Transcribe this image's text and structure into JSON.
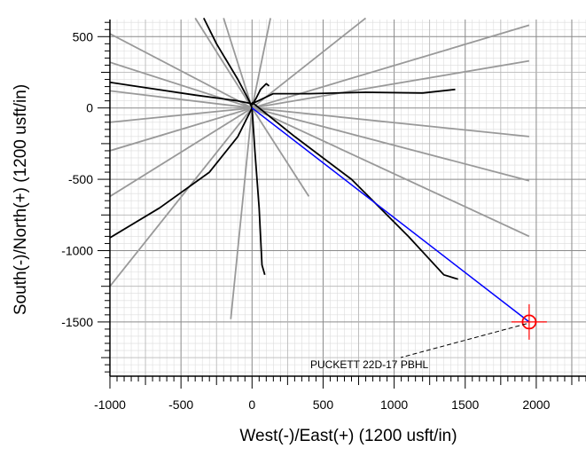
{
  "chart_data": {
    "type": "line",
    "xlabel": "West(-)/East(+) (1200 usft/in)",
    "ylabel": "South(-)/North(+) (1200 usft/in)",
    "xlim": [
      -1000,
      2350
    ],
    "ylim": [
      -1880,
      620
    ],
    "x_ticks": [
      -1000,
      -500,
      0,
      500,
      1000,
      1500,
      2000
    ],
    "y_ticks": [
      -1500,
      -1000,
      -500,
      0,
      500
    ],
    "x_tick_labels": [
      "-1000",
      "-500",
      "0",
      "500",
      "1000",
      "1500",
      "2000"
    ],
    "y_tick_labels": [
      "-1500",
      "-1000",
      "-500",
      "0",
      "500"
    ],
    "grid": true,
    "annotation": "PUCKETT 22D-17 PBHL",
    "target": {
      "x": 1950,
      "y": -1500
    },
    "series": [
      {
        "role": "planned-wellpath",
        "color": "#0000ff",
        "points": [
          [
            0,
            0
          ],
          [
            1950,
            -1500
          ]
        ]
      },
      {
        "role": "offset-wells",
        "color": "#000000",
        "lines": [
          [
            [
              0,
              0
            ],
            [
              -20,
              50
            ],
            [
              -100,
              200
            ],
            [
              -250,
              450
            ],
            [
              -340,
              630
            ]
          ],
          [
            [
              0,
              30
            ],
            [
              150,
              100
            ],
            [
              400,
              100
            ],
            [
              800,
              110
            ],
            [
              1200,
              105
            ],
            [
              1430,
              130
            ]
          ],
          [
            [
              0,
              30
            ],
            [
              -100,
              50
            ],
            [
              -400,
              90
            ],
            [
              -800,
              150
            ],
            [
              -1000,
              180
            ]
          ],
          [
            [
              0,
              0
            ],
            [
              -100,
              -200
            ],
            [
              -300,
              -450
            ],
            [
              -650,
              -700
            ],
            [
              -1000,
              -910
            ]
          ],
          [
            [
              0,
              0
            ],
            [
              20,
              -300
            ],
            [
              50,
              -700
            ],
            [
              70,
              -1100
            ],
            [
              90,
              -1170
            ]
          ],
          [
            [
              0,
              20
            ],
            [
              30,
              70
            ],
            [
              60,
              130
            ],
            [
              100,
              170
            ],
            [
              120,
              155
            ]
          ],
          [
            [
              0,
              40
            ],
            [
              300,
              -200
            ],
            [
              700,
              -500
            ],
            [
              1100,
              -900
            ],
            [
              1350,
              -1170
            ],
            [
              1450,
              -1200
            ]
          ]
        ]
      },
      {
        "role": "reference-lines",
        "color": "#999999",
        "lines": [
          [
            [
              0,
              0
            ],
            [
              -1000,
              520
            ]
          ],
          [
            [
              0,
              0
            ],
            [
              -1000,
              320
            ]
          ],
          [
            [
              0,
              0
            ],
            [
              -1000,
              120
            ]
          ],
          [
            [
              0,
              0
            ],
            [
              -1000,
              -100
            ]
          ],
          [
            [
              0,
              0
            ],
            [
              -1000,
              -300
            ]
          ],
          [
            [
              0,
              0
            ],
            [
              -1000,
              -620
            ]
          ],
          [
            [
              0,
              0
            ],
            [
              -1000,
              -1250
            ]
          ],
          [
            [
              0,
              0
            ],
            [
              -400,
              630
            ]
          ],
          [
            [
              0,
              0
            ],
            [
              -200,
              630
            ]
          ],
          [
            [
              0,
              0
            ],
            [
              130,
              630
            ]
          ],
          [
            [
              0,
              0
            ],
            [
              800,
              630
            ]
          ],
          [
            [
              0,
              0
            ],
            [
              1950,
              580
            ]
          ],
          [
            [
              0,
              0
            ],
            [
              1950,
              330
            ]
          ],
          [
            [
              0,
              0
            ],
            [
              1950,
              -200
            ]
          ],
          [
            [
              0,
              0
            ],
            [
              1950,
              -510
            ]
          ],
          [
            [
              0,
              0
            ],
            [
              1950,
              -900
            ]
          ],
          [
            [
              0,
              0
            ],
            [
              -150,
              -1480
            ]
          ],
          [
            [
              0,
              0
            ],
            [
              400,
              -620
            ]
          ]
        ]
      }
    ]
  }
}
